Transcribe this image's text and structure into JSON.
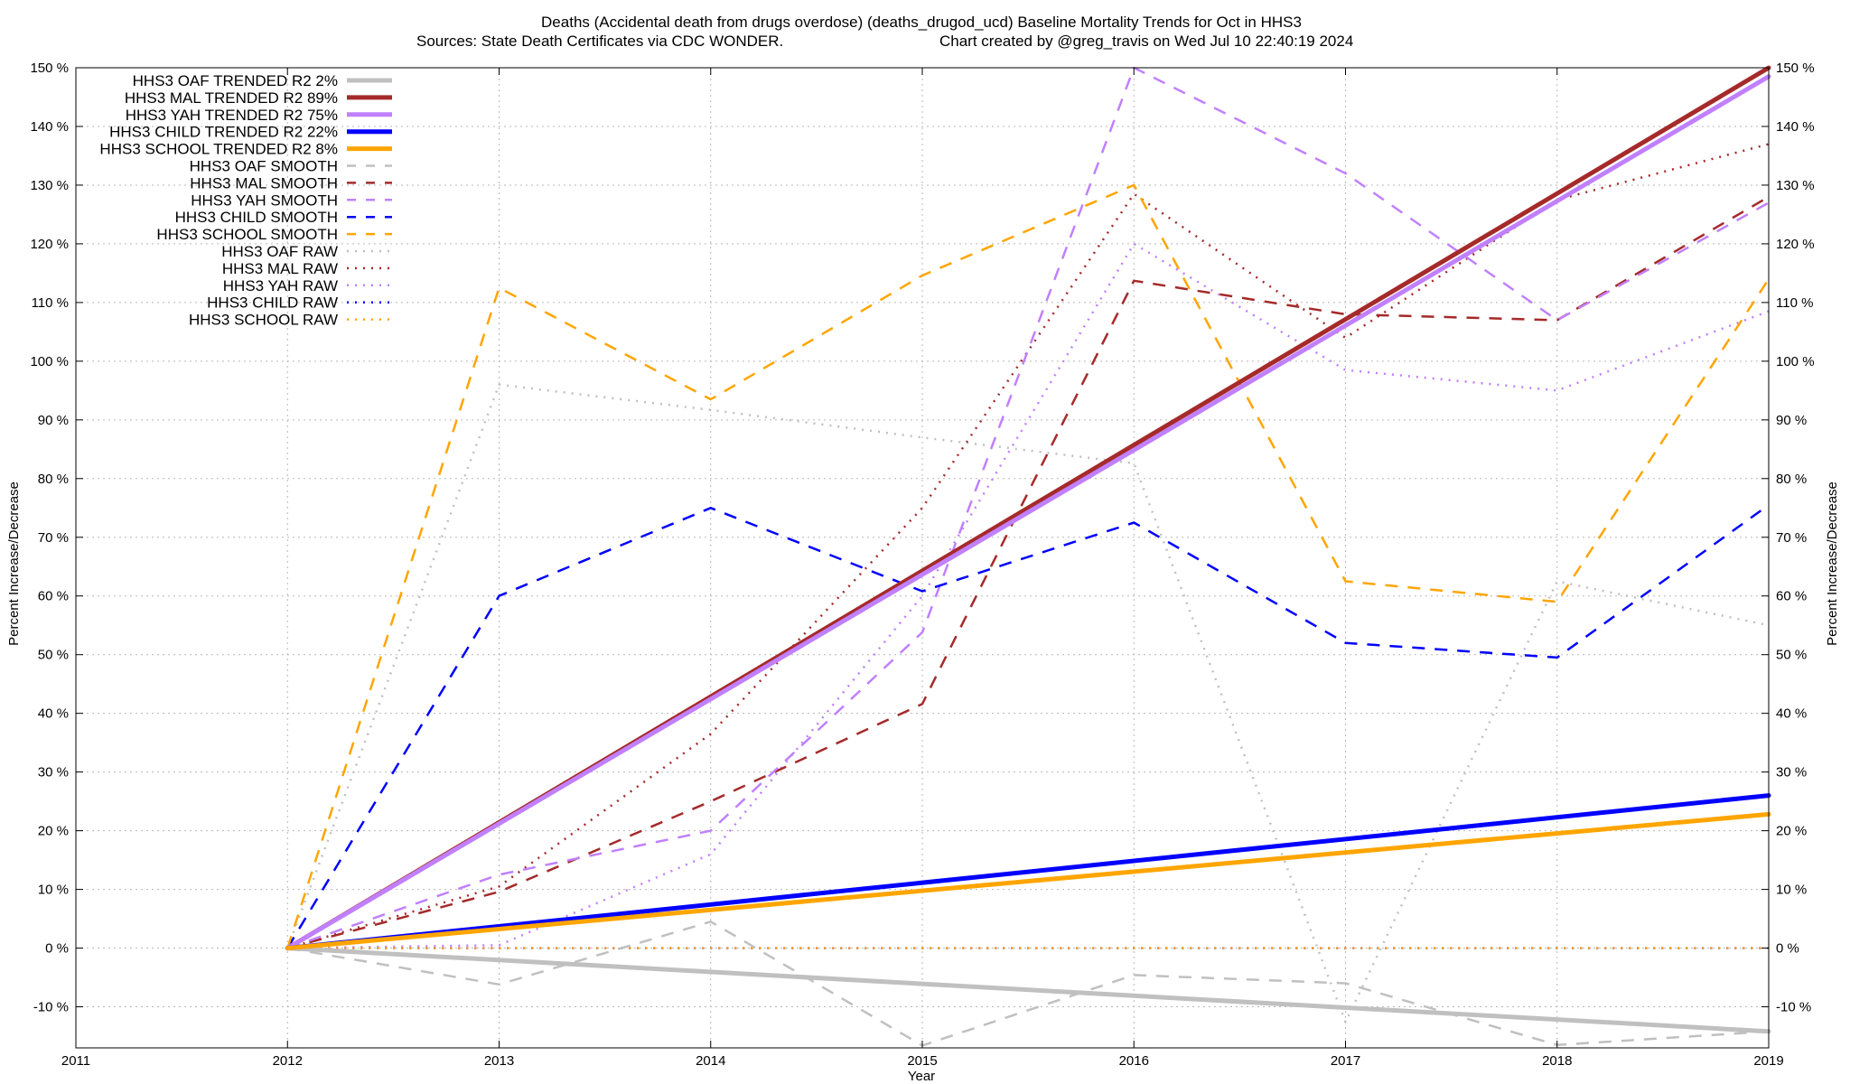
{
  "chart_data": {
    "type": "line",
    "title_line1": "Deaths (Accidental death from drugs overdose) (deaths_drugod_ucd)  Baseline Mortality Trends for Oct in HHS3",
    "title_line2_left": "Sources: State Death Certificates via CDC WONDER.",
    "title_line2_right": "Chart created by @greg_travis on Wed Jul 10 22:40:19 2024",
    "xlabel": "Year",
    "ylabel": "Percent Increase/Decrease",
    "ylabel_right": "Percent Increase/Decrease",
    "xlim": [
      2011,
      2019
    ],
    "ylim": [
      -17,
      150
    ],
    "grid": true,
    "legend_position": "top-left",
    "x_ticks": [
      2011,
      2012,
      2013,
      2014,
      2015,
      2016,
      2017,
      2018,
      2019
    ],
    "y_ticks": [
      -10,
      0,
      10,
      20,
      30,
      40,
      50,
      60,
      70,
      80,
      90,
      100,
      110,
      120,
      130,
      140,
      150
    ],
    "y_tick_suffix": " %",
    "series": [
      {
        "name": "HHS3 OAF TRENDED R2",
        "r2_label": "2%",
        "style": "trend",
        "color": "#c0c0c0",
        "x": [
          2012,
          2019
        ],
        "values": [
          0,
          -14.2
        ]
      },
      {
        "name": "HHS3 MAL TRENDED R2",
        "r2_label": "89%",
        "style": "trend",
        "color": "#a52a2a",
        "x": [
          2012,
          2019
        ],
        "values": [
          0,
          150
        ]
      },
      {
        "name": "HHS3 YAH TRENDED R2",
        "r2_label": "75%",
        "style": "trend",
        "color": "#c080ff",
        "x": [
          2012,
          2019
        ],
        "values": [
          0,
          148.5
        ]
      },
      {
        "name": "HHS3 CHILD TRENDED R2",
        "r2_label": "22%",
        "style": "trend",
        "color": "#0000ff",
        "x": [
          2012,
          2019
        ],
        "values": [
          0,
          26
        ]
      },
      {
        "name": "HHS3 SCHOOL TRENDED R2",
        "r2_label": "8%",
        "style": "trend",
        "color": "#ffa500",
        "x": [
          2012,
          2019
        ],
        "values": [
          0,
          22.8
        ]
      },
      {
        "name": "HHS3 OAF SMOOTH",
        "style": "smooth",
        "color": "#c0c0c0",
        "x": [
          2012,
          2013,
          2014,
          2015,
          2016,
          2017,
          2018,
          2019
        ],
        "values": [
          0,
          -6.2,
          4.5,
          -16.6,
          -4.6,
          -6,
          -16.5,
          -14.2
        ]
      },
      {
        "name": "HHS3 MAL SMOOTH",
        "style": "smooth",
        "color": "#a52a2a",
        "x": [
          2012,
          2013,
          2014,
          2015,
          2016,
          2017,
          2018,
          2019
        ],
        "values": [
          0,
          9.6,
          25,
          41.6,
          113.7,
          108,
          107,
          128
        ]
      },
      {
        "name": "HHS3 YAH SMOOTH",
        "style": "smooth",
        "color": "#c080ff",
        "x": [
          2012,
          2013,
          2014,
          2015,
          2016,
          2017,
          2018,
          2019
        ],
        "values": [
          0,
          12.5,
          20,
          53.8,
          150,
          132,
          107,
          127
        ]
      },
      {
        "name": "HHS3 CHILD SMOOTH",
        "style": "smooth",
        "color": "#0000ff",
        "x": [
          2012,
          2013,
          2014,
          2015,
          2016,
          2017,
          2018,
          2019
        ],
        "values": [
          0,
          60,
          75,
          60.8,
          72.5,
          52,
          49.5,
          75.5
        ]
      },
      {
        "name": "HHS3 SCHOOL SMOOTH",
        "style": "smooth",
        "color": "#ffa500",
        "x": [
          2012,
          2013,
          2014,
          2015,
          2016,
          2017,
          2018,
          2019
        ],
        "values": [
          0,
          112.5,
          93.5,
          114.6,
          130,
          62.5,
          59,
          114
        ]
      },
      {
        "name": "HHS3 OAF RAW",
        "style": "raw",
        "color": "#c0c0c0",
        "x": [
          2012,
          2013,
          2014,
          2015,
          2016,
          2017,
          2018,
          2019
        ],
        "values": [
          0,
          96,
          91.7,
          87,
          82.6,
          -12.6,
          62.5,
          55
        ]
      },
      {
        "name": "HHS3 MAL RAW",
        "style": "raw",
        "color": "#a52a2a",
        "x": [
          2012,
          2013,
          2014,
          2015,
          2016,
          2017,
          2018,
          2019
        ],
        "values": [
          0,
          10.5,
          36.5,
          75,
          128.5,
          104,
          127.5,
          137
        ]
      },
      {
        "name": "HHS3 YAH RAW",
        "style": "raw",
        "color": "#c080ff",
        "x": [
          2012,
          2013,
          2014,
          2015,
          2016,
          2017,
          2018,
          2019
        ],
        "values": [
          0,
          0.5,
          16,
          60,
          120,
          98.5,
          95,
          108.5
        ]
      },
      {
        "name": "HHS3 CHILD RAW",
        "style": "raw",
        "color": "#0000ff",
        "x": [
          2012,
          2013,
          2014,
          2015,
          2016,
          2017,
          2018,
          2019
        ],
        "values": [
          0,
          0,
          0,
          0,
          0,
          0,
          0,
          0
        ]
      },
      {
        "name": "HHS3 SCHOOL RAW",
        "style": "raw",
        "color": "#ffa500",
        "x": [
          2012,
          2013,
          2014,
          2015,
          2016,
          2017,
          2018,
          2019
        ],
        "values": [
          0,
          0,
          0,
          0,
          0,
          0,
          0,
          0
        ]
      }
    ]
  }
}
